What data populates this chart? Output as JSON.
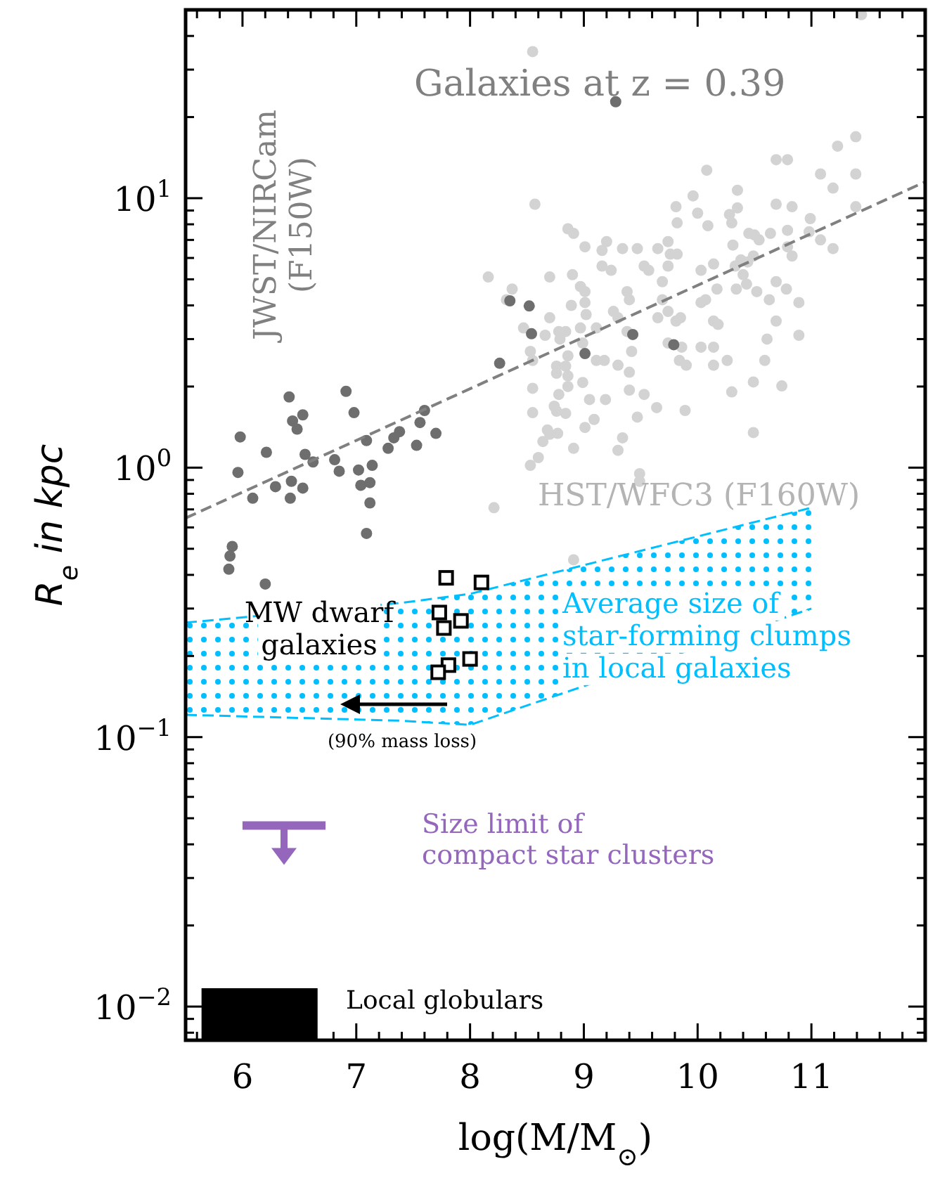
{
  "chart_data": {
    "type": "scatter",
    "title": "Galaxies at z = 0.39",
    "xlabel": "log(M/M$_{⊙}$)",
    "ylabel": "R$_{e}$ in kpc",
    "log": "y",
    "grid": false,
    "xlim": [
      5.5,
      12
    ],
    "ylim": [
      0.0075,
      50
    ],
    "xticks": [
      {
        "value": 5.6,
        "label": null
      },
      {
        "value": 5.8,
        "label": null
      },
      6,
      {
        "value": 6.2,
        "label": null
      },
      {
        "value": 6.4,
        "label": null
      },
      {
        "value": 6.6,
        "label": null
      },
      {
        "value": 6.8,
        "label": null
      },
      7,
      {
        "value": 7.2,
        "label": null
      },
      {
        "value": 7.4,
        "label": null
      },
      {
        "value": 7.6,
        "label": null
      },
      {
        "value": 7.8,
        "label": null
      },
      8,
      {
        "value": 8.2,
        "label": null
      },
      {
        "value": 8.4,
        "label": null
      },
      {
        "value": 8.6,
        "label": null
      },
      {
        "value": 8.8,
        "label": null
      },
      9,
      {
        "value": 9.2,
        "label": null
      },
      {
        "value": 9.4,
        "label": null
      },
      {
        "value": 9.6,
        "label": null
      },
      {
        "value": 9.8,
        "label": null
      },
      10,
      {
        "value": 10.2,
        "label": null
      },
      {
        "value": 10.4,
        "label": null
      },
      {
        "value": 10.6,
        "label": null
      },
      {
        "value": 10.8,
        "label": null
      },
      11,
      {
        "value": 11.2,
        "label": null
      },
      {
        "value": 11.4,
        "label": null
      },
      {
        "value": 11.6,
        "label": null
      },
      {
        "value": 11.8,
        "label": null
      }
    ],
    "yticks": [
      {
        "value": 0.008,
        "label": null
      },
      {
        "value": 0.009,
        "label": null
      },
      {
        "value": 0.01,
        "label": "10$^{−2}$"
      },
      {
        "value": 0.02,
        "label": null
      },
      {
        "value": 0.03,
        "label": null
      },
      {
        "value": 0.04,
        "label": null
      },
      {
        "value": 0.05,
        "label": null
      },
      {
        "value": 0.06,
        "label": null
      },
      {
        "value": 0.07,
        "label": null
      },
      {
        "value": 0.08,
        "label": null
      },
      {
        "value": 0.09,
        "label": null
      },
      {
        "value": 0.1,
        "label": "10$^{−1}$"
      },
      {
        "value": 0.2,
        "label": null
      },
      {
        "value": 0.3,
        "label": null
      },
      {
        "value": 0.4,
        "label": null
      },
      {
        "value": 0.5,
        "label": null
      },
      {
        "value": 0.6,
        "label": null
      },
      {
        "value": 0.7,
        "label": null
      },
      {
        "value": 0.8,
        "label": null
      },
      {
        "value": 0.9,
        "label": null
      },
      {
        "value": 1,
        "label": "10$^{0}$"
      },
      {
        "value": 2,
        "label": null
      },
      {
        "value": 3,
        "label": null
      },
      {
        "value": 4,
        "label": null
      },
      {
        "value": 5,
        "label": null
      },
      {
        "value": 6,
        "label": null
      },
      {
        "value": 7,
        "label": null
      },
      {
        "value": 8,
        "label": null
      },
      {
        "value": 9,
        "label": null
      },
      {
        "value": 10,
        "label": "10$^{1}$"
      },
      {
        "value": 20,
        "label": null
      },
      {
        "value": 30,
        "label": null
      },
      {
        "value": 40,
        "label": null
      }
    ],
    "series": [
      {
        "type": "area",
        "color": "#000000",
        "x": [
          5.64,
          6.66
        ],
        "values": [
          0.0117,
          0.0117
        ]
      },
      {
        "type": "area",
        "color": "#00bfff",
        "x": [
          5.5,
          7.4,
          8.0,
          11.0
        ],
        "values": [
          null,
          null,
          null,
          null
        ],
        "lower": [
          0.121,
          0.115,
          0.111,
          0.3
        ],
        "upper": [
          0.266,
          0.315,
          0.34,
          0.71
        ]
      },
      {
        "marker": "circle",
        "color": "#d3d3d3",
        "x": [
          8.55,
          8.57,
          8.16,
          8.37,
          8.32,
          8.47,
          8.53,
          8.55,
          8.55,
          8.55,
          8.53,
          8.6,
          8.64,
          8.7,
          8.77,
          8.68,
          8.74,
          8.76,
          8.84,
          8.78,
          8.76,
          8.76,
          8.86,
          8.86,
          8.84,
          8.7,
          8.7,
          8.66,
          8.78,
          8.79,
          8.84,
          8.86,
          8.9,
          8.89,
          8.86,
          8.91,
          8.97,
          9.01,
          9.01,
          9.02,
          8.97,
          8.99,
          8.99,
          9.05,
          9.01,
          8.91,
          9.01,
          9.11,
          9.11,
          9.18,
          9.19,
          9.09,
          9.16,
          9.2,
          9.16,
          9.24,
          9.26,
          9.3,
          9.34,
          9.38,
          9.4,
          9.38,
          9.42,
          9.3,
          9.4,
          9.4,
          9.53,
          9.47,
          9.34,
          9.3,
          9.49,
          9.47,
          9.53,
          9.57,
          9.65,
          9.69,
          9.74,
          9.76,
          9.74,
          9.82,
          9.69,
          9.74,
          9.65,
          9.81,
          9.85,
          9.74,
          9.86,
          9.84,
          9.9,
          9.64,
          9.89,
          9.81,
          9.82,
          9.96,
          10.0,
          10.08,
          10.09,
          10.03,
          10.14,
          10.03,
          10.07,
          10.17,
          10.14,
          10.18,
          10.03,
          10.14,
          10.14,
          10.26,
          10.3,
          10.28,
          10.3,
          10.35,
          10.35,
          10.31,
          10.38,
          10.33,
          10.44,
          10.4,
          10.34,
          10.43,
          10.45,
          10.5,
          10.54,
          10.49,
          10.52,
          10.63,
          10.61,
          10.59,
          10.49,
          10.49,
          10.64,
          10.69,
          10.69,
          10.79,
          10.83,
          10.79,
          10.79,
          10.69,
          10.78,
          10.69,
          10.83,
          10.89,
          10.89,
          10.74,
          10.99,
          10.98,
          11.08,
          11.08,
          11.19,
          11.23,
          11.39,
          11.39,
          11.39,
          11.19,
          11.44,
          8.21,
          9.49,
          8.91
        ],
        "values": [
          35,
          9.5,
          5.1,
          4.6,
          4.2,
          3.3,
          2.7,
          2.5,
          1.97,
          1.6,
          1.02,
          1.09,
          1.25,
          1.33,
          1.34,
          1.38,
          1.69,
          1.62,
          1.59,
          1.87,
          2.24,
          2.38,
          2.0,
          2.19,
          2.38,
          3.6,
          5.1,
          3.1,
          3.2,
          3.0,
          3.2,
          2.6,
          5.2,
          4.0,
          7.7,
          7.4,
          4.7,
          4.5,
          4.1,
          3.7,
          3.3,
          2.9,
          2.07,
          1.79,
          1.41,
          1.18,
          6.6,
          3.3,
          2.5,
          2.5,
          1.79,
          1.51,
          6.4,
          6.9,
          5.6,
          5.4,
          3.8,
          3.6,
          6.5,
          4.5,
          4.2,
          3.2,
          2.7,
          2.4,
          2.26,
          1.94,
          1.87,
          1.54,
          1.29,
          1.16,
          0.95,
          6.5,
          5.6,
          5.4,
          6.5,
          4.9,
          6.9,
          6.2,
          5.6,
          6.2,
          4.2,
          3.8,
          3.6,
          3.5,
          3.6,
          2.9,
          2.8,
          2.5,
          2.4,
          1.67,
          1.63,
          9.3,
          8.1,
          10.2,
          8.8,
          12.7,
          7.9,
          5.4,
          5.7,
          4.1,
          4.2,
          4.6,
          3.5,
          3.4,
          2.8,
          2.8,
          2.4,
          2.5,
          1.91,
          8.7,
          8.1,
          10.7,
          9.2,
          6.7,
          5.9,
          5.6,
          5.8,
          5.2,
          4.6,
          4.8,
          7.4,
          7.3,
          7.0,
          6.1,
          4.5,
          4.2,
          3.0,
          2.5,
          2.08,
          1.35,
          7.4,
          9.5,
          13.9,
          13.9,
          9.3,
          7.6,
          6.6,
          4.9,
          4.6,
          3.5,
          6.1,
          4.1,
          3.1,
          2.01,
          8.4,
          7.5,
          7.0,
          12.3,
          10.9,
          15.6,
          16.9,
          12.3,
          9.3,
          6.5,
          48,
          0.71,
          0.89,
          0.455
        ]
      },
      {
        "marker": "circle",
        "color": "#6e6e6e",
        "x": [
          5.98,
          5.96,
          6.09,
          6.21,
          6.29,
          6.41,
          6.44,
          6.48,
          6.53,
          6.55,
          6.43,
          6.42,
          6.53,
          6.62,
          6.81,
          6.85,
          6.91,
          6.98,
          7.02,
          7.09,
          7.04,
          7.12,
          7.14,
          7.12,
          7.28,
          7.33,
          7.38,
          7.53,
          7.56,
          7.6,
          7.7,
          8.26,
          8.35,
          8.52,
          8.54,
          9.01,
          9.43,
          9.79,
          9.28,
          5.91,
          5.89,
          5.88,
          6.2,
          7.09
        ],
        "values": [
          1.3,
          0.96,
          0.77,
          1.14,
          0.85,
          1.83,
          1.49,
          1.39,
          1.57,
          1.12,
          0.89,
          0.77,
          0.84,
          1.05,
          1.07,
          0.97,
          1.92,
          1.6,
          0.98,
          1.26,
          0.86,
          0.88,
          1.02,
          0.74,
          1.18,
          1.29,
          1.36,
          1.21,
          1.47,
          1.63,
          1.34,
          2.44,
          4.16,
          3.98,
          3.14,
          2.65,
          3.12,
          2.86,
          22.8,
          0.51,
          0.47,
          0.42,
          0.37,
          0.57
        ]
      },
      {
        "type": "line",
        "line_style": "dashed",
        "marker": "none",
        "color": "#808080",
        "x": [
          5.5,
          12
        ],
        "values": [
          0.65,
          11.5
        ]
      },
      {
        "marker": "square",
        "color": "#000000",
        "x": [
          7.79,
          8.1,
          7.73,
          7.92,
          7.77,
          8.0,
          7.81,
          7.72
        ],
        "values": [
          0.39,
          0.375,
          0.29,
          0.27,
          0.254,
          0.195,
          0.185,
          0.174
        ]
      },
      {
        "type": "line",
        "line_style": "solid",
        "marker": "none",
        "color": "#9467bd",
        "x": [
          6.0,
          6.73
        ],
        "values": [
          0.047,
          0.047
        ]
      }
    ],
    "annotations": [
      "JWST/NIRCam\n(F150W)",
      "HST/WFC3 (F160W)",
      "MW dwarf\ngalaxies",
      "Average size of\nstar-forming clumps\nin local galaxies",
      "(90% mass loss)",
      "Size limit of\ncompact star clusters",
      "Local globulars"
    ]
  }
}
